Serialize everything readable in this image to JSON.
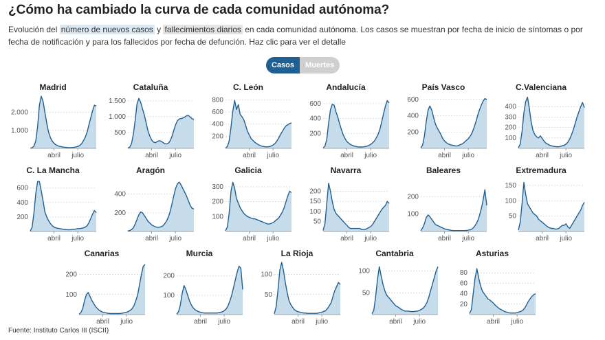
{
  "header": {
    "title": "¿Cómo ha cambiado la curva de cada comunidad autónoma?",
    "subtitle_1": "Evolución del ",
    "subtitle_casos": "número de nuevos casos",
    "subtitle_2": " y ",
    "subtitle_muertes": "fallecimientos diarios",
    "subtitle_3": " en cada comunidad autónoma. Los casos se muestran por fecha de inicio de síntomas o por fecha de notificación y para los fallecidos por fecha de defunción. Haz clic para ver el detalle"
  },
  "toggle": {
    "casos_label": "Casos",
    "muertes_label": "Muertes",
    "selected": "Casos"
  },
  "footer": {
    "source": "Fuente: Instituto Carlos III (ISCII)"
  },
  "colors": {
    "line": "#1f5f92",
    "fill": "#c7dcea",
    "grid": "#d8d8d8",
    "toggle_active": "#1f5f92",
    "toggle_inactive": "#cfcfcf"
  },
  "chart_data": [
    {
      "type": "area",
      "title": "Madrid",
      "x_ticks": [
        "abril",
        "julio"
      ],
      "y_ticks": [
        {
          "value": 1000,
          "label": "1.000"
        },
        {
          "value": 2000,
          "label": "2.000"
        }
      ],
      "ylim": [
        0,
        2900
      ],
      "values": [
        10,
        40,
        120,
        400,
        1200,
        2400,
        2900,
        2600,
        2000,
        1400,
        900,
        600,
        400,
        280,
        200,
        150,
        110,
        90,
        70,
        60,
        50,
        40,
        40,
        50,
        60,
        80,
        110,
        160,
        260,
        420,
        620,
        900,
        1300,
        1700,
        2100,
        2400,
        2350
      ]
    },
    {
      "type": "area",
      "title": "Cataluña",
      "x_ticks": [
        "abril",
        "julio"
      ],
      "y_ticks": [
        {
          "value": 500,
          "label": "500"
        },
        {
          "value": 1000,
          "label": "1.000"
        },
        {
          "value": 1500,
          "label": "1.500"
        }
      ],
      "ylim": [
        0,
        1650
      ],
      "values": [
        10,
        40,
        150,
        450,
        900,
        1400,
        1580,
        1450,
        1250,
        1050,
        800,
        550,
        380,
        260,
        200,
        180,
        210,
        240,
        230,
        190,
        150,
        140,
        160,
        230,
        370,
        560,
        740,
        870,
        930,
        940,
        960,
        990,
        1030,
        1040,
        990,
        940,
        910
      ]
    },
    {
      "type": "area",
      "title": "C. León",
      "x_ticks": [
        "abril",
        "julio"
      ],
      "y_ticks": [
        {
          "value": 200,
          "label": "200"
        },
        {
          "value": 400,
          "label": "400"
        },
        {
          "value": 600,
          "label": "600"
        },
        {
          "value": 800,
          "label": "800"
        }
      ],
      "ylim": [
        0,
        860
      ],
      "values": [
        5,
        30,
        120,
        350,
        620,
        790,
        640,
        720,
        560,
        520,
        470,
        380,
        280,
        220,
        160,
        130,
        100,
        80,
        60,
        45,
        35,
        30,
        25,
        25,
        30,
        40,
        55,
        80,
        120,
        170,
        230,
        280,
        330,
        370,
        390,
        410,
        420
      ]
    },
    {
      "type": "area",
      "title": "Andalucía",
      "x_ticks": [
        "abril",
        "julio"
      ],
      "y_ticks": [
        {
          "value": 200,
          "label": "200"
        },
        {
          "value": 400,
          "label": "400"
        },
        {
          "value": 600,
          "label": "600"
        }
      ],
      "ylim": [
        0,
        700
      ],
      "values": [
        5,
        30,
        120,
        340,
        520,
        590,
        580,
        490,
        420,
        330,
        250,
        180,
        130,
        90,
        70,
        50,
        40,
        30,
        25,
        20,
        18,
        18,
        20,
        25,
        30,
        40,
        55,
        75,
        100,
        140,
        190,
        260,
        360,
        470,
        570,
        640,
        610
      ]
    },
    {
      "type": "area",
      "title": "País Vasco",
      "x_ticks": [
        "abril",
        "julio"
      ],
      "y_ticks": [
        {
          "value": 200,
          "label": "200"
        },
        {
          "value": 400,
          "label": "400"
        },
        {
          "value": 600,
          "label": "600"
        }
      ],
      "ylim": [
        0,
        640
      ],
      "values": [
        5,
        40,
        150,
        330,
        470,
        520,
        470,
        380,
        300,
        250,
        210,
        170,
        120,
        90,
        70,
        55,
        45,
        40,
        35,
        30,
        30,
        40,
        50,
        60,
        80,
        100,
        120,
        150,
        190,
        250,
        320,
        400,
        470,
        530,
        580,
        610,
        600
      ]
    },
    {
      "type": "area",
      "title": "C.Valenciana",
      "x_ticks": [
        "abril",
        "julio"
      ],
      "y_ticks": [
        {
          "value": 100,
          "label": "100"
        },
        {
          "value": 200,
          "label": "200"
        },
        {
          "value": 300,
          "label": "300"
        },
        {
          "value": 400,
          "label": "400"
        }
      ],
      "ylim": [
        0,
        500
      ],
      "values": [
        5,
        40,
        160,
        340,
        450,
        490,
        380,
        250,
        170,
        130,
        110,
        100,
        120,
        95,
        70,
        50,
        40,
        30,
        25,
        20,
        18,
        15,
        15,
        20,
        25,
        30,
        40,
        60,
        90,
        130,
        180,
        240,
        300,
        350,
        400,
        440,
        390
      ]
    },
    {
      "type": "area",
      "title": "C. La Mancha",
      "x_ticks": [
        "abril",
        "julio"
      ],
      "y_ticks": [
        {
          "value": 200,
          "label": "200"
        },
        {
          "value": 400,
          "label": "400"
        },
        {
          "value": 600,
          "label": "600"
        }
      ],
      "ylim": [
        0,
        720
      ],
      "values": [
        5,
        60,
        250,
        520,
        690,
        690,
        560,
        420,
        270,
        200,
        150,
        110,
        80,
        60,
        50,
        45,
        40,
        35,
        30,
        28,
        25,
        25,
        25,
        30,
        30,
        35,
        40,
        40,
        45,
        50,
        60,
        80,
        120,
        180,
        240,
        290,
        260
      ]
    },
    {
      "type": "area",
      "title": "Aragón",
      "x_ticks": [
        "abril",
        "julio"
      ],
      "y_ticks": [
        {
          "value": 200,
          "label": "200"
        },
        {
          "value": 400,
          "label": "400"
        }
      ],
      "ylim": [
        0,
        560
      ],
      "values": [
        5,
        10,
        20,
        40,
        80,
        130,
        180,
        210,
        200,
        170,
        140,
        110,
        90,
        70,
        60,
        50,
        45,
        45,
        50,
        60,
        80,
        110,
        150,
        210,
        290,
        380,
        460,
        510,
        530,
        500,
        460,
        420,
        380,
        330,
        280,
        250,
        240
      ]
    },
    {
      "type": "area",
      "title": "Galicia",
      "x_ticks": [
        "abril",
        "julio"
      ],
      "y_ticks": [
        {
          "value": 100,
          "label": "100"
        },
        {
          "value": 200,
          "label": "200"
        },
        {
          "value": 300,
          "label": "300"
        }
      ],
      "ylim": [
        0,
        350
      ],
      "values": [
        5,
        30,
        120,
        270,
        330,
        290,
        220,
        190,
        160,
        140,
        120,
        110,
        100,
        95,
        90,
        85,
        85,
        80,
        75,
        70,
        65,
        60,
        55,
        50,
        50,
        55,
        60,
        70,
        80,
        90,
        110,
        130,
        160,
        200,
        240,
        270,
        260
      ]
    },
    {
      "type": "area",
      "title": "Navarra",
      "x_ticks": [
        "abril",
        "julio"
      ],
      "y_ticks": [
        {
          "value": 50,
          "label": "50"
        },
        {
          "value": 100,
          "label": "100"
        },
        {
          "value": 150,
          "label": "150"
        },
        {
          "value": 200,
          "label": "200"
        }
      ],
      "ylim": [
        0,
        260
      ],
      "values": [
        5,
        40,
        140,
        240,
        200,
        150,
        110,
        90,
        80,
        70,
        60,
        50,
        40,
        30,
        20,
        15,
        15,
        15,
        15,
        15,
        15,
        10,
        10,
        10,
        15,
        20,
        25,
        35,
        50,
        65,
        80,
        95,
        110,
        120,
        130,
        150,
        140
      ]
    },
    {
      "type": "area",
      "title": "Baleares",
      "x_ticks": [
        "abril",
        "julio"
      ],
      "y_ticks": [
        {
          "value": 100,
          "label": "100"
        },
        {
          "value": 200,
          "label": "200"
        }
      ],
      "ylim": [
        0,
        300
      ],
      "values": [
        5,
        20,
        45,
        80,
        95,
        85,
        70,
        55,
        40,
        35,
        30,
        25,
        20,
        15,
        12,
        10,
        8,
        6,
        5,
        5,
        5,
        5,
        5,
        5,
        5,
        6,
        8,
        10,
        15,
        25,
        40,
        60,
        90,
        130,
        180,
        240,
        150
      ]
    },
    {
      "type": "area",
      "title": "Extremadura",
      "x_ticks": [
        "abril",
        "julio"
      ],
      "y_ticks": [
        {
          "value": 50,
          "label": "50"
        },
        {
          "value": 100,
          "label": "100"
        },
        {
          "value": 150,
          "label": "150"
        }
      ],
      "ylim": [
        0,
        170
      ],
      "values": [
        5,
        30,
        90,
        160,
        120,
        90,
        80,
        70,
        60,
        55,
        50,
        40,
        35,
        30,
        25,
        20,
        15,
        12,
        10,
        10,
        8,
        8,
        10,
        15,
        20,
        20,
        25,
        15,
        10,
        20,
        30,
        40,
        50,
        60,
        70,
        85,
        95
      ]
    },
    {
      "type": "area",
      "title": "Canarias",
      "x_ticks": [
        "abril",
        "julio"
      ],
      "y_ticks": [
        {
          "value": 100,
          "label": "100"
        },
        {
          "value": 200,
          "label": "200"
        }
      ],
      "ylim": [
        0,
        260
      ],
      "values": [
        2,
        10,
        30,
        70,
        100,
        110,
        90,
        70,
        55,
        40,
        30,
        22,
        16,
        12,
        10,
        8,
        6,
        5,
        5,
        5,
        5,
        5,
        5,
        6,
        8,
        10,
        12,
        16,
        22,
        30,
        45,
        70,
        100,
        150,
        200,
        240,
        250
      ]
    },
    {
      "type": "area",
      "title": "Murcia",
      "x_ticks": [
        "abril",
        "julio"
      ],
      "y_ticks": [
        {
          "value": 100,
          "label": "100"
        },
        {
          "value": 200,
          "label": "200"
        }
      ],
      "ylim": [
        0,
        270
      ],
      "values": [
        2,
        15,
        50,
        110,
        150,
        130,
        100,
        70,
        50,
        35,
        25,
        20,
        15,
        12,
        10,
        8,
        8,
        8,
        8,
        8,
        8,
        8,
        8,
        10,
        12,
        15,
        20,
        30,
        45,
        70,
        100,
        140,
        180,
        220,
        250,
        240,
        130
      ]
    },
    {
      "type": "area",
      "title": "La Rioja",
      "x_ticks": [
        "abril",
        "julio"
      ],
      "y_ticks": [
        {
          "value": 50,
          "label": "50"
        },
        {
          "value": 100,
          "label": "100"
        }
      ],
      "ylim": [
        0,
        130
      ],
      "values": [
        2,
        20,
        60,
        110,
        130,
        110,
        80,
        55,
        35,
        25,
        18,
        12,
        9,
        7,
        6,
        5,
        4,
        4,
        3,
        3,
        3,
        3,
        3,
        3,
        4,
        5,
        6,
        8,
        10,
        15,
        22,
        30,
        45,
        60,
        70,
        80,
        75
      ]
    },
    {
      "type": "area",
      "title": "Cantabria",
      "x_ticks": [
        "abril",
        "julio"
      ],
      "y_ticks": [
        {
          "value": 50,
          "label": "50"
        },
        {
          "value": 100,
          "label": "100"
        }
      ],
      "ylim": [
        0,
        120
      ],
      "values": [
        2,
        10,
        40,
        80,
        110,
        90,
        70,
        55,
        45,
        40,
        35,
        30,
        25,
        20,
        18,
        15,
        12,
        10,
        8,
        8,
        8,
        7,
        7,
        7,
        8,
        8,
        10,
        12,
        15,
        20,
        28,
        40,
        55,
        70,
        85,
        100,
        110
      ]
    },
    {
      "type": "area",
      "title": "Asturias",
      "x_ticks": [
        "abril",
        "julio"
      ],
      "y_ticks": [
        {
          "value": 20,
          "label": "20"
        },
        {
          "value": 40,
          "label": "40"
        },
        {
          "value": 60,
          "label": "60"
        },
        {
          "value": 80,
          "label": "80"
        }
      ],
      "ylim": [
        0,
        100
      ],
      "values": [
        2,
        10,
        40,
        70,
        88,
        70,
        55,
        45,
        40,
        35,
        30,
        28,
        25,
        22,
        18,
        15,
        12,
        10,
        8,
        6,
        5,
        4,
        3,
        3,
        3,
        3,
        4,
        5,
        6,
        8,
        12,
        18,
        25,
        30,
        35,
        38,
        40
      ]
    }
  ]
}
